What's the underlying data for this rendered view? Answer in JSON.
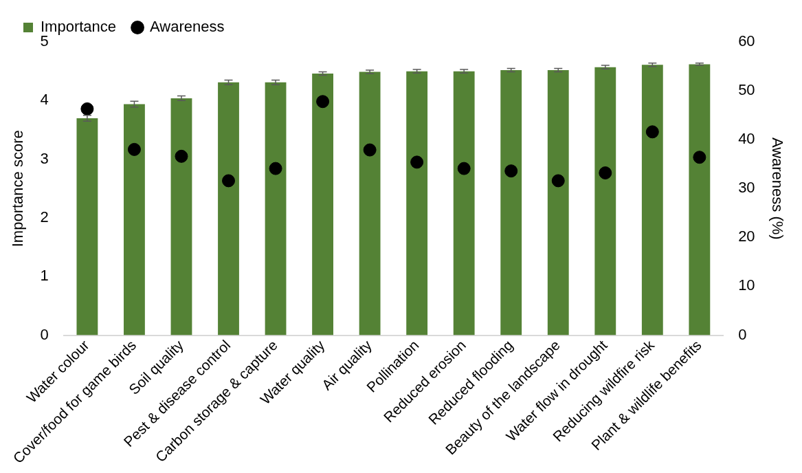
{
  "chart_data": {
    "type": "bar",
    "categories": [
      "Water colour",
      "Cover/food for game birds",
      "Soil quality",
      "Pest & disease control",
      "Carbon storage & capture",
      "Water quality",
      "Air quality",
      "Pollination",
      "Reduced erosion",
      "Reduced flooding",
      "Beauty of the landscape",
      "Water flow in drought",
      "Reducing wildfire risk",
      "Plant & wildlife benefits"
    ],
    "series": [
      {
        "name": "Importance",
        "color": "#548235",
        "values": [
          3.7,
          3.94,
          4.04,
          4.31,
          4.31,
          4.46,
          4.49,
          4.5,
          4.5,
          4.52,
          4.52,
          4.57,
          4.61,
          4.62
        ],
        "errors": [
          0.05,
          0.05,
          0.04,
          0.04,
          0.04,
          0.03,
          0.03,
          0.03,
          0.03,
          0.03,
          0.03,
          0.03,
          0.03,
          0.02
        ]
      },
      {
        "name": "Awareness",
        "type": "scatter",
        "axis": "y2",
        "color": "#000000",
        "values": [
          46.3,
          38,
          36.6,
          31.6,
          34.1,
          47.8,
          37.9,
          35.4,
          34.1,
          33.6,
          31.6,
          33.2,
          41.6,
          36.4
        ]
      }
    ],
    "ylabel": "Importance score",
    "y2label": "Awareness (%)",
    "ylim": [
      0,
      5
    ],
    "yticks": [
      0,
      1,
      2,
      3,
      4,
      5
    ],
    "y2lim": [
      0,
      60
    ],
    "y2ticks": [
      0,
      10,
      20,
      30,
      40,
      50,
      60
    ],
    "grid": false,
    "legend": "top left",
    "marker": "circle"
  }
}
